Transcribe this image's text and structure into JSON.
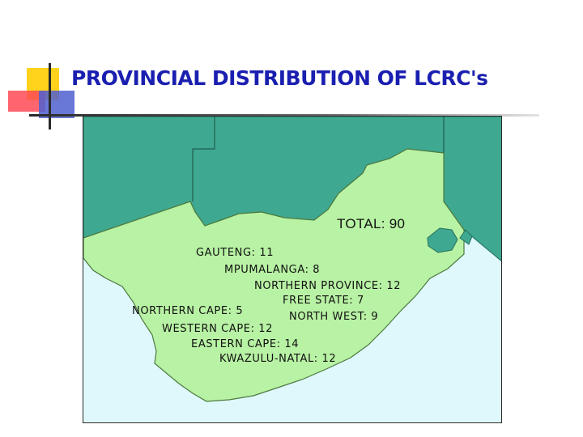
{
  "title": "PROVINCIAL DISTRIBUTION OF LCRC's",
  "colors": {
    "title": "#1a1fb0",
    "land": "#b8f2a4",
    "neighbours": "#3fa890",
    "ocean": "#dff8fc",
    "accent_yellow": "#ffd21c",
    "accent_red": "#ff4a55",
    "accent_blue": "#4f5fd0"
  },
  "map": {
    "total": "TOTAL: 90",
    "provinces": [
      {
        "label": "GAUTENG: 11"
      },
      {
        "label": "MPUMALANGA: 8"
      },
      {
        "label": "NORTHERN PROVINCE: 12"
      },
      {
        "label": "FREE STATE: 7"
      },
      {
        "label": "NORTHERN CAPE: 5"
      },
      {
        "label": "NORTH WEST: 9"
      },
      {
        "label": "WESTERN CAPE: 12"
      },
      {
        "label": "EASTERN CAPE: 14"
      },
      {
        "label": "KWAZULU-NATAL: 12"
      }
    ]
  }
}
